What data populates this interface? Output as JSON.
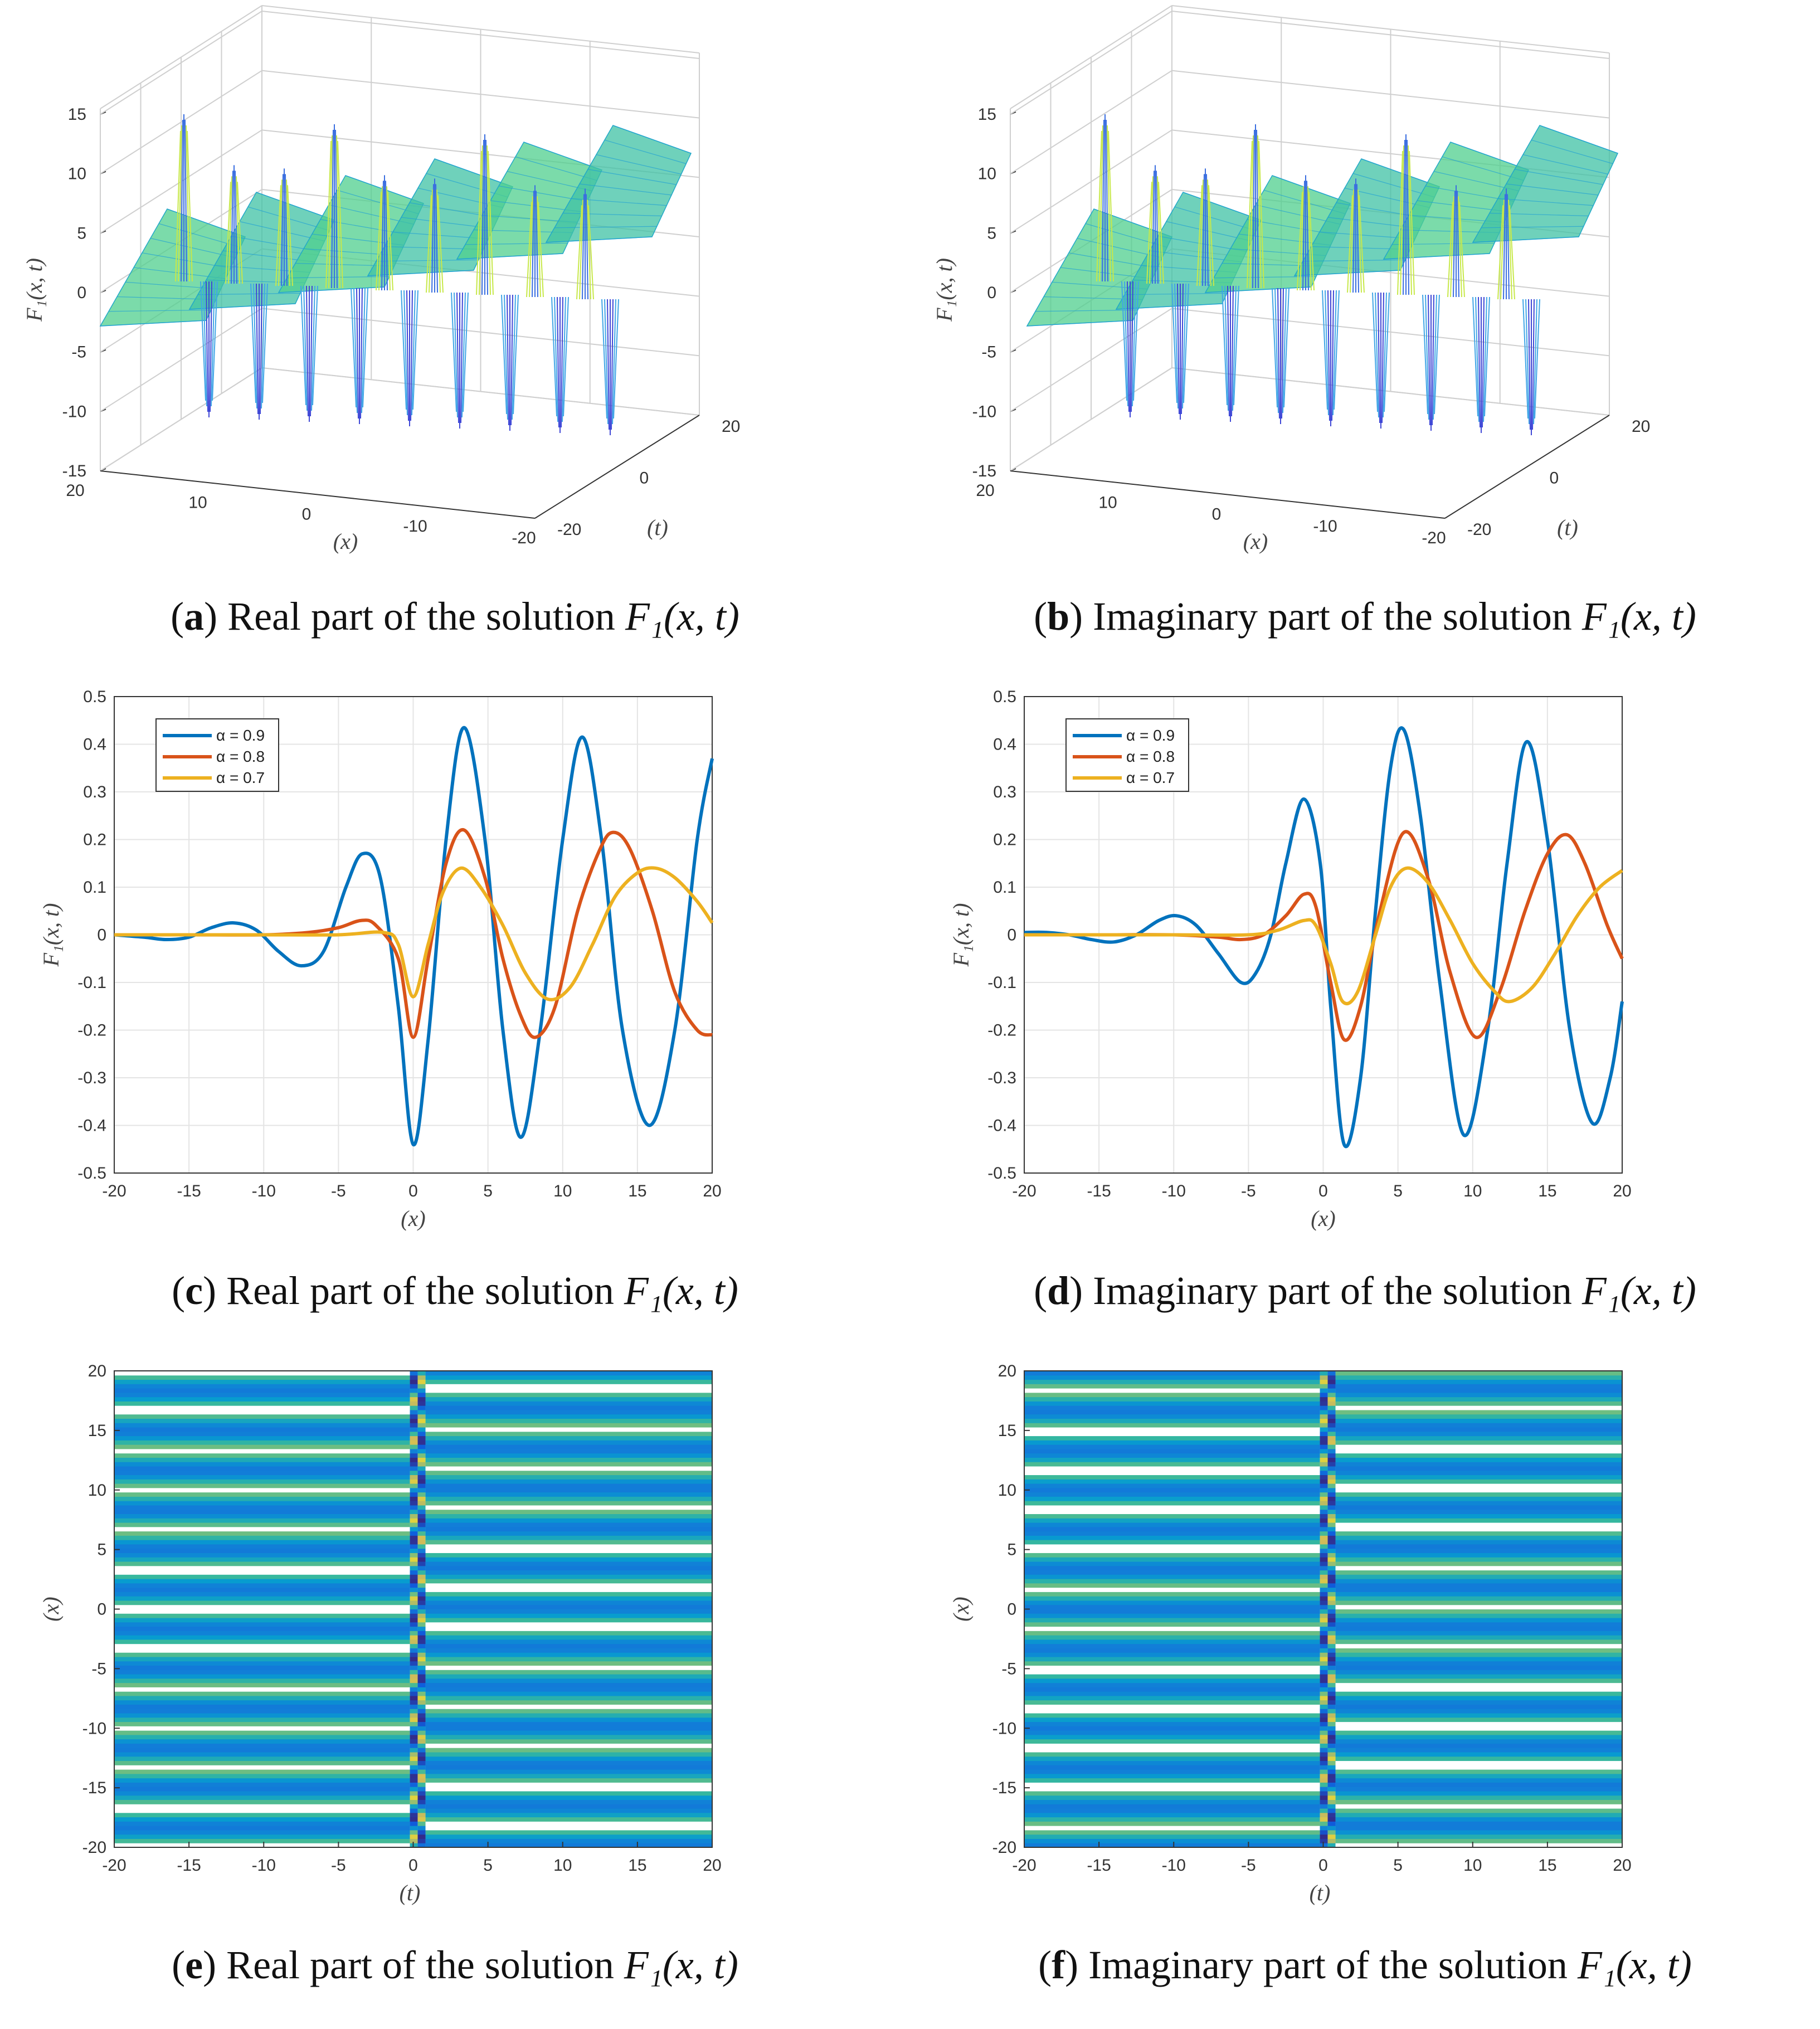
{
  "chart_data": [
    {
      "id": "a",
      "type": "surface3d",
      "caption_letter": "a",
      "caption_text": "Real part of the solution ",
      "caption_math": "F₁(x, t)",
      "zlabel": "F₁(x, t)",
      "xlabel": "(x)",
      "ylabel": "(t)",
      "zticks": [
        "15",
        "10",
        "5",
        "0",
        "-5",
        "-10",
        "-15"
      ],
      "xticks": [
        "20",
        "10",
        "0",
        "-10",
        "-20"
      ],
      "yticks": [
        "-20",
        "0",
        "20"
      ],
      "zlim": [
        -15,
        15
      ],
      "xlim": [
        -20,
        20
      ],
      "ylim": [
        -20,
        20
      ],
      "peak_count": 9
    },
    {
      "id": "b",
      "type": "surface3d",
      "caption_letter": "b",
      "caption_text": "Imaginary part of the solution ",
      "caption_math": "F₁(x, t)",
      "zlabel": "F₁(x, t)",
      "xlabel": "(x)",
      "ylabel": "(t)",
      "zticks": [
        "15",
        "10",
        "5",
        "0",
        "-5",
        "-10",
        "-15"
      ],
      "xticks": [
        "20",
        "10",
        "0",
        "-10",
        "-20"
      ],
      "yticks": [
        "-20",
        "0",
        "20"
      ],
      "zlim": [
        -15,
        15
      ],
      "xlim": [
        -20,
        20
      ],
      "ylim": [
        -20,
        20
      ],
      "peak_count": 9
    },
    {
      "id": "c",
      "type": "line",
      "caption_letter": "c",
      "caption_text": "Real part of the solution ",
      "caption_math": "F₁(x, t)",
      "xlabel": "(x)",
      "ylabel": "F₁(x, t)",
      "xlim": [
        -20,
        20
      ],
      "ylim": [
        -0.5,
        0.5
      ],
      "xticks": [
        "-20",
        "-15",
        "-10",
        "-5",
        "0",
        "5",
        "10",
        "15",
        "20"
      ],
      "yticks": [
        "0.5",
        "0.4",
        "0.3",
        "0.2",
        "0.1",
        "0",
        "-0.1",
        "-0.2",
        "-0.3",
        "-0.4",
        "-0.5"
      ],
      "legend_position": "top-left",
      "series": [
        {
          "name": "α = 0.9",
          "color": "#0072bd",
          "points": [
            [
              -20,
              0
            ],
            [
              -18,
              -0.005
            ],
            [
              -16.5,
              -0.01
            ],
            [
              -15,
              -0.005
            ],
            [
              -13.5,
              0.015
            ],
            [
              -12,
              0.025
            ],
            [
              -10.5,
              0.01
            ],
            [
              -9,
              -0.035
            ],
            [
              -7.5,
              -0.065
            ],
            [
              -6,
              -0.035
            ],
            [
              -4.5,
              0.1
            ],
            [
              -3.4,
              0.17
            ],
            [
              -2.2,
              0.12
            ],
            [
              -1,
              -0.15
            ],
            [
              0,
              -0.44
            ],
            [
              1,
              -0.22
            ],
            [
              2.2,
              0.2
            ],
            [
              3.4,
              0.435
            ],
            [
              4.8,
              0.2
            ],
            [
              6,
              -0.2
            ],
            [
              7.2,
              -0.425
            ],
            [
              8.5,
              -0.2
            ],
            [
              10,
              0.2
            ],
            [
              11.3,
              0.415
            ],
            [
              12.6,
              0.2
            ],
            [
              14,
              -0.2
            ],
            [
              15.8,
              -0.4
            ],
            [
              17.5,
              -0.2
            ],
            [
              19,
              0.2
            ],
            [
              20,
              0.37
            ]
          ]
        },
        {
          "name": "α = 0.8",
          "color": "#d95319",
          "points": [
            [
              -20,
              0
            ],
            [
              -15,
              0
            ],
            [
              -10,
              0
            ],
            [
              -7,
              0.005
            ],
            [
              -5,
              0.015
            ],
            [
              -3.5,
              0.03
            ],
            [
              -2.5,
              0.02
            ],
            [
              -1,
              -0.05
            ],
            [
              0,
              -0.215
            ],
            [
              1,
              -0.05
            ],
            [
              2.2,
              0.15
            ],
            [
              3.4,
              0.22
            ],
            [
              4.8,
              0.12
            ],
            [
              6,
              -0.05
            ],
            [
              7.2,
              -0.17
            ],
            [
              8.2,
              -0.215
            ],
            [
              9.5,
              -0.15
            ],
            [
              11,
              0.05
            ],
            [
              12.5,
              0.18
            ],
            [
              13.4,
              0.215
            ],
            [
              14.5,
              0.18
            ],
            [
              16,
              0.05
            ],
            [
              17.5,
              -0.12
            ],
            [
              19,
              -0.2
            ],
            [
              20,
              -0.21
            ]
          ]
        },
        {
          "name": "α = 0.7",
          "color": "#edb120",
          "points": [
            [
              -20,
              0
            ],
            [
              -15,
              0
            ],
            [
              -10,
              0
            ],
            [
              -5,
              0
            ],
            [
              -2,
              0.005
            ],
            [
              -1,
              -0.02
            ],
            [
              0,
              -0.13
            ],
            [
              1,
              -0.02
            ],
            [
              2,
              0.09
            ],
            [
              3.2,
              0.14
            ],
            [
              4.5,
              0.1
            ],
            [
              6,
              0.02
            ],
            [
              7.5,
              -0.08
            ],
            [
              9,
              -0.135
            ],
            [
              10.5,
              -0.11
            ],
            [
              12,
              -0.02
            ],
            [
              13.5,
              0.08
            ],
            [
              15,
              0.13
            ],
            [
              16.2,
              0.14
            ],
            [
              17.5,
              0.12
            ],
            [
              19,
              0.07
            ],
            [
              20,
              0.025
            ]
          ]
        }
      ]
    },
    {
      "id": "d",
      "type": "line",
      "caption_letter": "d",
      "caption_text": "Imaginary part of the solution ",
      "caption_math": "F₁(x, t)",
      "xlabel": "(x)",
      "ylabel": "F₁(x, t)",
      "xlim": [
        -20,
        20
      ],
      "ylim": [
        -0.5,
        0.5
      ],
      "xticks": [
        "-20",
        "-15",
        "-10",
        "-5",
        "0",
        "5",
        "10",
        "15",
        "20"
      ],
      "yticks": [
        "0.5",
        "0.4",
        "0.3",
        "0.2",
        "0.1",
        "0",
        "-0.1",
        "-0.2",
        "-0.3",
        "-0.4",
        "-0.5"
      ],
      "legend_position": "top-left",
      "series": [
        {
          "name": "α = 0.9",
          "color": "#0072bd",
          "points": [
            [
              -20,
              0.005
            ],
            [
              -18.5,
              0.005
            ],
            [
              -17,
              0
            ],
            [
              -15.5,
              -0.01
            ],
            [
              -14,
              -0.015
            ],
            [
              -12.5,
              0
            ],
            [
              -11,
              0.03
            ],
            [
              -9.8,
              0.04
            ],
            [
              -8.5,
              0.02
            ],
            [
              -7,
              -0.04
            ],
            [
              -5.5,
              -0.1
            ],
            [
              -4.5,
              -0.08
            ],
            [
              -3.5,
              0
            ],
            [
              -2.5,
              0.15
            ],
            [
              -1.3,
              0.285
            ],
            [
              -0.2,
              0.15
            ],
            [
              0.5,
              -0.15
            ],
            [
              1.4,
              -0.44
            ],
            [
              2.5,
              -0.3
            ],
            [
              3.5,
              0.05
            ],
            [
              4.5,
              0.35
            ],
            [
              5.4,
              0.43
            ],
            [
              6.5,
              0.25
            ],
            [
              7.8,
              -0.1
            ],
            [
              9.4,
              -0.42
            ],
            [
              11,
              -0.2
            ],
            [
              12.3,
              0.15
            ],
            [
              13.6,
              0.405
            ],
            [
              15,
              0.2
            ],
            [
              16.5,
              -0.2
            ],
            [
              18,
              -0.395
            ],
            [
              19.2,
              -0.3
            ],
            [
              20,
              -0.14
            ]
          ]
        },
        {
          "name": "α = 0.8",
          "color": "#d95319",
          "points": [
            [
              -20,
              0
            ],
            [
              -15,
              0
            ],
            [
              -10,
              0
            ],
            [
              -7,
              -0.005
            ],
            [
              -5.5,
              -0.01
            ],
            [
              -4,
              0
            ],
            [
              -2.5,
              0.04
            ],
            [
              -1.3,
              0.085
            ],
            [
              -0.5,
              0.06
            ],
            [
              0.5,
              -0.1
            ],
            [
              1.4,
              -0.22
            ],
            [
              2.5,
              -0.15
            ],
            [
              3.8,
              0.05
            ],
            [
              5.4,
              0.215
            ],
            [
              7,
              0.12
            ],
            [
              8.5,
              -0.08
            ],
            [
              10.2,
              -0.215
            ],
            [
              11.8,
              -0.12
            ],
            [
              13.5,
              0.05
            ],
            [
              15,
              0.17
            ],
            [
              16.3,
              0.21
            ],
            [
              17.5,
              0.15
            ],
            [
              19,
              0.02
            ],
            [
              20,
              -0.05
            ]
          ]
        },
        {
          "name": "α = 0.7",
          "color": "#edb120",
          "points": [
            [
              -20,
              0
            ],
            [
              -15,
              0
            ],
            [
              -10,
              0
            ],
            [
              -5,
              0
            ],
            [
              -3,
              0.01
            ],
            [
              -1.3,
              0.03
            ],
            [
              -0.5,
              0.02
            ],
            [
              0.5,
              -0.06
            ],
            [
              1.3,
              -0.14
            ],
            [
              2.3,
              -0.12
            ],
            [
              3.5,
              0
            ],
            [
              4.5,
              0.1
            ],
            [
              5.6,
              0.14
            ],
            [
              7,
              0.11
            ],
            [
              8.5,
              0.03
            ],
            [
              10,
              -0.06
            ],
            [
              11.5,
              -0.12
            ],
            [
              12.5,
              -0.14
            ],
            [
              14,
              -0.11
            ],
            [
              15.5,
              -0.04
            ],
            [
              17,
              0.04
            ],
            [
              18.5,
              0.1
            ],
            [
              20,
              0.135
            ]
          ]
        }
      ]
    },
    {
      "id": "e",
      "type": "contour",
      "caption_letter": "e",
      "caption_text": "Real part of the solution ",
      "caption_math": "F₁(x, t)",
      "xlabel": "(t)",
      "ylabel": "(x)",
      "xlim": [
        -20,
        20
      ],
      "ylim": [
        -20,
        20
      ],
      "xticks": [
        "-20",
        "-15",
        "-10",
        "-5",
        "0",
        "5",
        "10",
        "15",
        "20"
      ],
      "yticks": [
        "20",
        "15",
        "10",
        "5",
        "0",
        "-5",
        "-10",
        "-15",
        "-20"
      ],
      "band_count": 12,
      "phase": 0.0
    },
    {
      "id": "f",
      "type": "contour",
      "caption_letter": "f",
      "caption_text": "Imaginary part of the solution ",
      "caption_math": "F₁(x, t)",
      "xlabel": "(t)",
      "ylabel": "(x)",
      "xlim": [
        -20,
        20
      ],
      "ylim": [
        -20,
        20
      ],
      "xticks": [
        "-20",
        "-15",
        "-10",
        "-5",
        "0",
        "5",
        "10",
        "15",
        "20"
      ],
      "yticks": [
        "20",
        "15",
        "10",
        "5",
        "0",
        "-5",
        "-10",
        "-15",
        "-20"
      ],
      "band_count": 12,
      "phase": 0.5
    }
  ]
}
